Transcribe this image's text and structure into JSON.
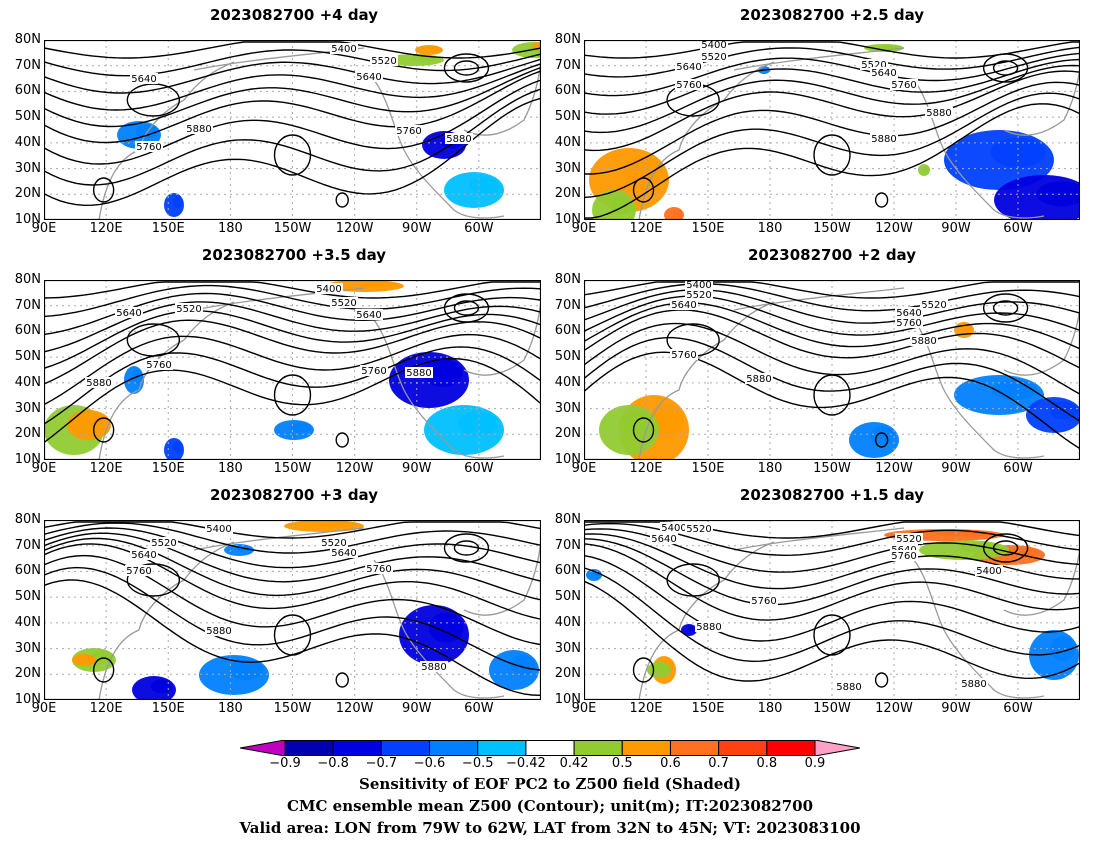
{
  "panels": [
    {
      "title": "2023082700  +4 day",
      "contours": [
        "5400",
        "5520",
        "5640",
        "5640",
        "5880",
        "5760",
        "5760",
        "5880"
      ]
    },
    {
      "title": "2023082700  +2.5  day",
      "contours": [
        "5400",
        "5520",
        "5640",
        "5520",
        "5640",
        "5760",
        "5760",
        "5880",
        "5880"
      ]
    },
    {
      "title": "2023082700  +3.5  day",
      "contours": [
        "5400",
        "5520",
        "5640",
        "5520",
        "5640",
        "5760",
        "5880",
        "5760",
        "5880"
      ]
    },
    {
      "title": "2023082700  +2  day",
      "contours": [
        "5400",
        "5520",
        "5640",
        "5520",
        "5640",
        "5760",
        "5760",
        "5880",
        "5880"
      ]
    },
    {
      "title": "2023082700  +3  day",
      "contours": [
        "5400",
        "5520",
        "5640",
        "5520",
        "5640",
        "5760",
        "5760",
        "5880",
        "5880"
      ]
    },
    {
      "title": "2023082700  +1.5  day",
      "contours": [
        "5400",
        "5520",
        "5640",
        "5520",
        "5640",
        "5760",
        "5400",
        "5760",
        "5880",
        "5880",
        "5880"
      ]
    }
  ],
  "y_ticks": [
    "80N",
    "70N",
    "60N",
    "50N",
    "40N",
    "30N",
    "20N",
    "10N"
  ],
  "x_ticks": [
    "90E",
    "120E",
    "150E",
    "180",
    "150W",
    "120W",
    "90W",
    "60W"
  ],
  "colorbar": {
    "labels": [
      "−0.9",
      "−0.8",
      "−0.7",
      "−0.6",
      "−0.5",
      "−0.42",
      "0.42",
      "0.5",
      "0.6",
      "0.7",
      "0.8",
      "0.9"
    ],
    "colors": [
      "#c000c0",
      "#0000b0",
      "#0000e0",
      "#0040ff",
      "#0080ff",
      "#00c0ff",
      "#ffffff",
      "#90cc30",
      "#ff9900",
      "#ff7020",
      "#ff4010",
      "#ff0000",
      "#ffa0c8"
    ]
  },
  "caption": {
    "line1": "Sensitivity of EOF PC2 to Z500 field (Shaded)",
    "line2": "CMC ensemble mean Z500 (Contour); unit(m); IT:2023082700",
    "line3": "Valid area: LON from 79W to 62W, LAT from 32N to 45N; VT: 2023083100"
  }
}
